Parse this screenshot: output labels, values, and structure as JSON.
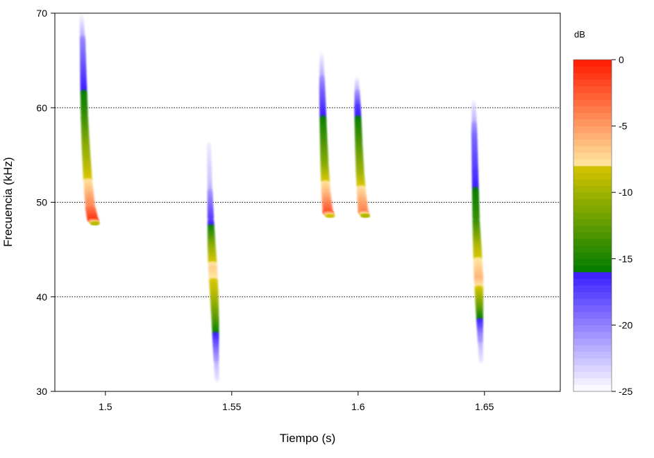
{
  "chart_data": {
    "type": "heatmap",
    "subtype": "spectrogram",
    "xlabel": "Tiempo (s)",
    "ylabel": "Frecuencia (kHz)",
    "xlim": [
      1.48,
      1.68
    ],
    "ylim": [
      30,
      70
    ],
    "x_ticks": [
      {
        "value": 1.5,
        "label": "1.5"
      },
      {
        "value": 1.55,
        "label": "1.55"
      },
      {
        "value": 1.6,
        "label": "1.6"
      },
      {
        "value": 1.65,
        "label": "1.65"
      }
    ],
    "y_ticks": [
      {
        "value": 30,
        "label": "30"
      },
      {
        "value": 40,
        "label": "40"
      },
      {
        "value": 50,
        "label": "50"
      },
      {
        "value": 60,
        "label": "60"
      },
      {
        "value": 70,
        "label": "70"
      }
    ],
    "gridlines_y": [
      40,
      50,
      60
    ],
    "grid": "dotted horizontal",
    "colorbar": {
      "title": "dB",
      "range": [
        -25,
        0
      ],
      "ticks": [
        {
          "value": 0,
          "label": "0"
        },
        {
          "value": -5,
          "label": "-5"
        },
        {
          "value": -10,
          "label": "-10"
        },
        {
          "value": -15,
          "label": "-15"
        },
        {
          "value": -20,
          "label": "-20"
        },
        {
          "value": -25,
          "label": "-25"
        }
      ],
      "segments": [
        {
          "from": -25,
          "to": -16,
          "colors": [
            "#ffffff",
            "#3a1cff"
          ]
        },
        {
          "from": -16,
          "to": -8,
          "colors": [
            "#007c00",
            "#d6c400"
          ]
        },
        {
          "from": -8,
          "to": 0,
          "colors": [
            "#ffe9a0",
            "#ff1a00"
          ]
        }
      ]
    },
    "calls": [
      {
        "name": "call-1",
        "points": [
          {
            "t": 1.4905,
            "f": 70,
            "db": -25
          },
          {
            "t": 1.491,
            "f": 67,
            "db": -20
          },
          {
            "t": 1.4913,
            "f": 63,
            "db": -17
          },
          {
            "t": 1.4917,
            "f": 59,
            "db": -14
          },
          {
            "t": 1.4922,
            "f": 56,
            "db": -11
          },
          {
            "t": 1.493,
            "f": 52.5,
            "db": -8
          },
          {
            "t": 1.494,
            "f": 49.5,
            "db": -4
          },
          {
            "t": 1.495,
            "f": 48.2,
            "db": -1
          },
          {
            "t": 1.496,
            "f": 47.7,
            "db": -10
          }
        ]
      },
      {
        "name": "call-2",
        "points": [
          {
            "t": 1.541,
            "f": 56,
            "db": -24
          },
          {
            "t": 1.5413,
            "f": 52,
            "db": -22
          },
          {
            "t": 1.5417,
            "f": 48,
            "db": -17
          },
          {
            "t": 1.542,
            "f": 45.5,
            "db": -11
          },
          {
            "t": 1.5425,
            "f": 43,
            "db": -7
          },
          {
            "t": 1.543,
            "f": 40.5,
            "db": -9
          },
          {
            "t": 1.5435,
            "f": 37.5,
            "db": -13
          },
          {
            "t": 1.5438,
            "f": 34,
            "db": -20
          },
          {
            "t": 1.5442,
            "f": 31,
            "db": -24
          }
        ]
      },
      {
        "name": "call-3",
        "points": [
          {
            "t": 1.5855,
            "f": 66,
            "db": -25
          },
          {
            "t": 1.5858,
            "f": 62,
            "db": -19
          },
          {
            "t": 1.5862,
            "f": 58,
            "db": -15
          },
          {
            "t": 1.5867,
            "f": 54,
            "db": -11
          },
          {
            "t": 1.5873,
            "f": 51,
            "db": -6
          },
          {
            "t": 1.588,
            "f": 49,
            "db": -2
          },
          {
            "t": 1.589,
            "f": 48.5,
            "db": -9
          }
        ]
      },
      {
        "name": "call-4",
        "points": [
          {
            "t": 1.5995,
            "f": 63,
            "db": -24
          },
          {
            "t": 1.5998,
            "f": 60,
            "db": -17
          },
          {
            "t": 1.6003,
            "f": 56,
            "db": -13
          },
          {
            "t": 1.6008,
            "f": 53,
            "db": -10
          },
          {
            "t": 1.6015,
            "f": 50.5,
            "db": -6
          },
          {
            "t": 1.602,
            "f": 49,
            "db": -4
          },
          {
            "t": 1.603,
            "f": 48.5,
            "db": -10
          }
        ]
      },
      {
        "name": "call-5",
        "points": [
          {
            "t": 1.6458,
            "f": 60.5,
            "db": -24
          },
          {
            "t": 1.646,
            "f": 57,
            "db": -19
          },
          {
            "t": 1.6463,
            "f": 53,
            "db": -17
          },
          {
            "t": 1.6467,
            "f": 48,
            "db": -14
          },
          {
            "t": 1.6472,
            "f": 45,
            "db": -9
          },
          {
            "t": 1.6477,
            "f": 42,
            "db": -6
          },
          {
            "t": 1.648,
            "f": 39,
            "db": -12
          },
          {
            "t": 1.6483,
            "f": 36,
            "db": -20
          },
          {
            "t": 1.6487,
            "f": 33,
            "db": -24
          }
        ]
      }
    ]
  }
}
